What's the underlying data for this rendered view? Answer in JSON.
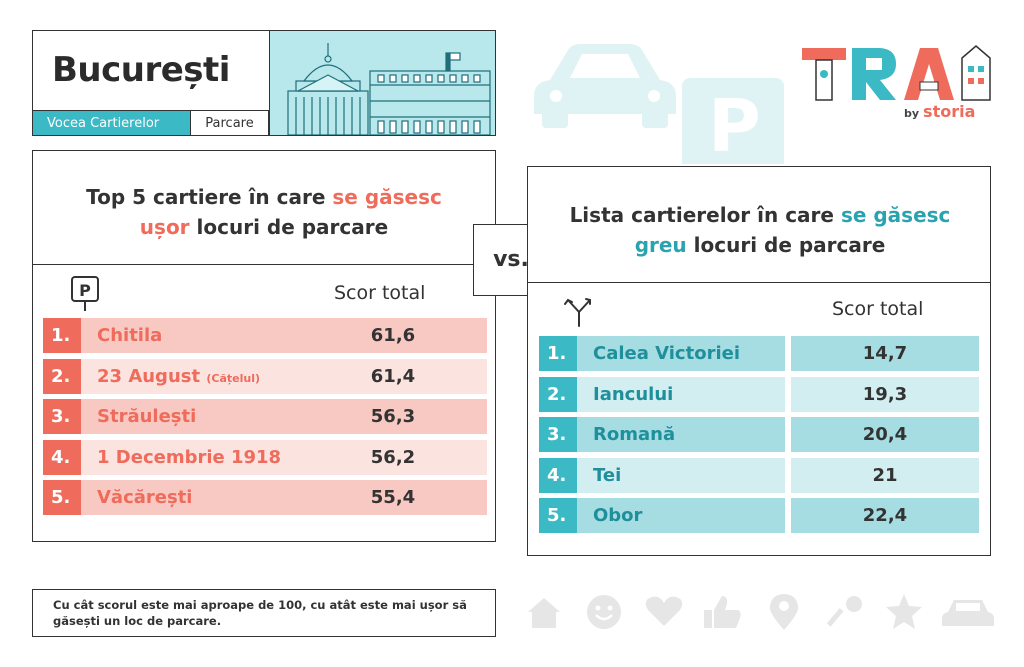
{
  "header": {
    "city": "București",
    "tag_primary": "Vocea Cartierelor",
    "tag_secondary": "Parcare"
  },
  "decor": {
    "parking_letter": "P"
  },
  "logo": {
    "wordmark": "TRAI",
    "by": "by",
    "brand": "storia"
  },
  "vs_label": "vs.",
  "left": {
    "title_pre": "Top 5 cartiere în care ",
    "title_highlight_1": "se găsesc",
    "title_highlight_2": "ușor",
    "title_post": " locuri de parcare",
    "sign_letter": "P",
    "score_header": "Scor total",
    "rows": [
      {
        "num": "1.",
        "name": "Chitila",
        "note": "",
        "score": "61,6"
      },
      {
        "num": "2.",
        "name": "23 August",
        "note": "(Cățelul)",
        "score": "61,4"
      },
      {
        "num": "3.",
        "name": "Străulești",
        "note": "",
        "score": "56,3"
      },
      {
        "num": "4.",
        "name": "1 Decembrie 1918",
        "note": "",
        "score": "56,2"
      },
      {
        "num": "5.",
        "name": "Văcărești",
        "note": "",
        "score": "55,4"
      }
    ]
  },
  "right": {
    "title_pre": "Lista cartierelor în care ",
    "title_highlight_1": "se găsesc",
    "title_highlight_2": "greu",
    "title_post": " locuri de parcare",
    "score_header": "Scor total",
    "rows": [
      {
        "num": "1.",
        "name": "Calea Victoriei",
        "score": "14,7"
      },
      {
        "num": "2.",
        "name": "Iancului",
        "score": "19,3"
      },
      {
        "num": "3.",
        "name": "Romană",
        "score": "20,4"
      },
      {
        "num": "4.",
        "name": "Tei",
        "score": "21"
      },
      {
        "num": "5.",
        "name": "Obor",
        "score": "22,4"
      }
    ]
  },
  "footer_note": "Cu cât scorul este mai aproape de 100, cu atât este mai ușor să găsești un loc de parcare.",
  "bottom_icons": [
    "home-icon",
    "smile-icon",
    "heart-icon",
    "thumbs-up-icon",
    "location-pin-icon",
    "key-icon",
    "star-icon",
    "car-icon"
  ],
  "colors": {
    "accent_red": "#ef6b5b",
    "accent_teal": "#3bb9c5",
    "text_dark": "#333333",
    "decor_light": "#dff2f4"
  }
}
